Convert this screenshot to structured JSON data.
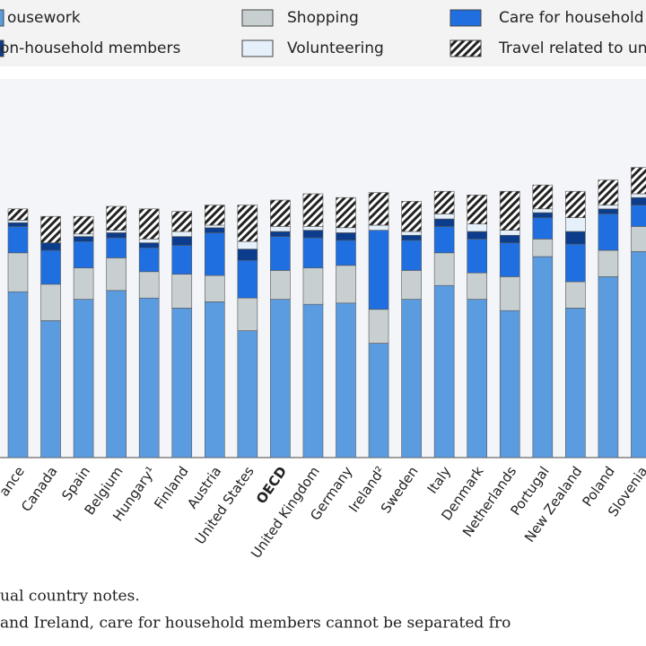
{
  "chart_data": {
    "type": "stacked-bar",
    "categories": [
      "ance",
      "Canada",
      "Spain",
      "Belgium",
      "Hungary¹",
      "Finland",
      "Austria",
      "United States",
      "OECD",
      "United Kingdom",
      "Germany",
      "Ireland²",
      "Sweden",
      "Italy",
      "Denmark",
      "Netherlands",
      "Portugal",
      "New Zealand",
      "Poland",
      "Slovenia"
    ],
    "series": [
      {
        "name": "ousework",
        "color": "#5b9be0",
        "values": [
          132,
          109,
          126,
          133,
          127,
          119,
          124,
          101,
          126,
          122,
          123,
          91,
          126,
          137,
          126,
          117,
          160,
          119,
          144,
          164
        ]
      },
      {
        "name": "Shopping",
        "color": "#c8cfd0",
        "values": [
          31,
          29,
          25,
          26,
          21,
          27,
          21,
          26,
          23,
          29,
          30,
          27,
          23,
          26,
          21,
          27,
          14,
          21,
          21,
          20
        ]
      },
      {
        "name": "Care for household",
        "color": "#1f6fe0",
        "values": [
          21,
          27,
          21,
          16,
          19,
          23,
          34,
          30,
          27,
          24,
          20,
          63,
          24,
          21,
          27,
          27,
          17,
          30,
          29,
          17
        ]
      },
      {
        "name": "on-household members",
        "color": "#0b3d8c",
        "values": [
          3,
          6,
          4,
          4,
          4,
          7,
          4,
          9,
          4,
          6,
          6,
          0,
          4,
          6,
          6,
          6,
          4,
          10,
          4,
          6
        ]
      },
      {
        "name": "Volunteering",
        "color": "#e6f0fa",
        "values": [
          2,
          0,
          2,
          2,
          3,
          4,
          2,
          6,
          4,
          3,
          4,
          4,
          3,
          4,
          6,
          4,
          3,
          11,
          3,
          3
        ]
      },
      {
        "name": "Travel related to un",
        "color": "#222222",
        "hatched": true,
        "values": [
          9,
          21,
          14,
          19,
          24,
          16,
          16,
          29,
          21,
          26,
          24,
          26,
          24,
          18,
          23,
          31,
          19,
          21,
          20,
          21
        ]
      }
    ],
    "ylim": [
      0,
      300
    ],
    "highlight_category": "OECD",
    "notes": [
      "ual country notes.",
      "and Ireland, care for household members cannot be separated fro"
    ]
  }
}
